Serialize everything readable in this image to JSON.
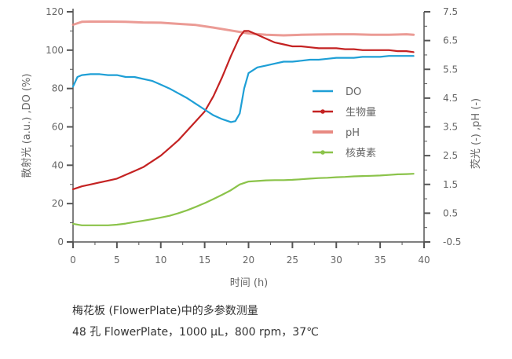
{
  "chart_data": {
    "type": "line",
    "xlabel": "时间 (h)",
    "ylabel_left": "散射光 (a.u.) ,DO (%)",
    "ylabel_right": "荧光 (-) ,pH (-)",
    "xlim": [
      0,
      40
    ],
    "ylim_left": [
      0,
      120
    ],
    "ylim_right": [
      -0.5,
      7.5
    ],
    "x_ticks": [
      "0",
      "5",
      "10",
      "15",
      "20",
      "25",
      "30",
      "35",
      "40"
    ],
    "y_left_ticks": [
      "0",
      "20",
      "40",
      "60",
      "80",
      "100",
      "120"
    ],
    "y_right_ticks": [
      "-0.5",
      "0.5",
      "1.5",
      "2.5",
      "3.5",
      "4.5",
      "5.5",
      "6.5",
      "7.5"
    ],
    "grid": false,
    "legend_position": "right-middle",
    "series": [
      {
        "name": "DO",
        "axis": "left",
        "color": "#1e9fd6",
        "marker": "none",
        "points": [
          [
            0,
            81
          ],
          [
            0.5,
            86
          ],
          [
            1,
            87
          ],
          [
            2,
            87.5
          ],
          [
            3,
            87.5
          ],
          [
            4,
            87
          ],
          [
            5,
            87
          ],
          [
            6,
            86
          ],
          [
            7,
            86
          ],
          [
            8,
            85
          ],
          [
            9,
            84
          ],
          [
            10,
            82
          ],
          [
            11,
            80
          ],
          [
            12,
            77.5
          ],
          [
            13,
            75
          ],
          [
            14,
            72
          ],
          [
            15,
            69
          ],
          [
            16,
            66
          ],
          [
            17,
            64
          ],
          [
            18,
            62.5
          ],
          [
            18.5,
            63
          ],
          [
            19,
            67
          ],
          [
            19.5,
            80
          ],
          [
            20,
            88
          ],
          [
            21,
            91
          ],
          [
            22,
            92
          ],
          [
            23,
            93
          ],
          [
            24,
            94
          ],
          [
            25,
            94
          ],
          [
            26,
            94.5
          ],
          [
            27,
            95
          ],
          [
            28,
            95
          ],
          [
            29,
            95.5
          ],
          [
            30,
            96
          ],
          [
            31,
            96
          ],
          [
            32,
            96
          ],
          [
            33,
            96.5
          ],
          [
            34,
            96.5
          ],
          [
            35,
            96.5
          ],
          [
            36,
            97
          ],
          [
            37,
            97
          ],
          [
            38,
            97
          ],
          [
            38.8,
            97
          ]
        ]
      },
      {
        "name": "生物量",
        "axis": "left",
        "color": "#c42222",
        "marker": "dot",
        "points": [
          [
            0,
            27.5
          ],
          [
            1,
            29
          ],
          [
            2,
            30
          ],
          [
            3,
            31
          ],
          [
            4,
            32
          ],
          [
            5,
            33
          ],
          [
            6,
            35
          ],
          [
            7,
            37
          ],
          [
            8,
            39
          ],
          [
            9,
            42
          ],
          [
            10,
            45
          ],
          [
            11,
            49
          ],
          [
            12,
            53
          ],
          [
            13,
            58
          ],
          [
            14,
            63
          ],
          [
            15,
            68
          ],
          [
            16,
            76
          ],
          [
            17,
            86
          ],
          [
            18,
            97
          ],
          [
            19,
            107
          ],
          [
            19.5,
            110
          ],
          [
            20,
            110
          ],
          [
            21,
            108
          ],
          [
            22,
            106
          ],
          [
            23,
            104
          ],
          [
            24,
            103
          ],
          [
            25,
            102
          ],
          [
            26,
            102
          ],
          [
            27,
            101.5
          ],
          [
            28,
            101
          ],
          [
            29,
            101
          ],
          [
            30,
            101
          ],
          [
            31,
            100.5
          ],
          [
            32,
            100.5
          ],
          [
            33,
            100
          ],
          [
            34,
            100
          ],
          [
            35,
            100
          ],
          [
            36,
            100
          ],
          [
            37,
            99.5
          ],
          [
            38,
            99.5
          ],
          [
            38.8,
            99
          ]
        ]
      },
      {
        "name": "pH",
        "axis": "right",
        "color": "#e88a82",
        "marker": "none",
        "points": [
          [
            0,
            7.05
          ],
          [
            1,
            7.15
          ],
          [
            2,
            7.16
          ],
          [
            4,
            7.16
          ],
          [
            6,
            7.15
          ],
          [
            8,
            7.13
          ],
          [
            10,
            7.12
          ],
          [
            12,
            7.08
          ],
          [
            14,
            7.04
          ],
          [
            16,
            6.95
          ],
          [
            18,
            6.85
          ],
          [
            20,
            6.75
          ],
          [
            22,
            6.7
          ],
          [
            24,
            6.68
          ],
          [
            26,
            6.7
          ],
          [
            28,
            6.71
          ],
          [
            30,
            6.72
          ],
          [
            32,
            6.72
          ],
          [
            34,
            6.7
          ],
          [
            36,
            6.7
          ],
          [
            38,
            6.72
          ],
          [
            38.8,
            6.7
          ]
        ]
      },
      {
        "name": "核黄素",
        "axis": "right",
        "color": "#8bc34a",
        "marker": "dot",
        "points": [
          [
            0,
            0.13
          ],
          [
            1,
            0.08
          ],
          [
            2,
            0.08
          ],
          [
            3,
            0.08
          ],
          [
            4,
            0.08
          ],
          [
            5,
            0.1
          ],
          [
            6,
            0.14
          ],
          [
            7,
            0.19
          ],
          [
            8,
            0.24
          ],
          [
            9,
            0.29
          ],
          [
            10,
            0.35
          ],
          [
            11,
            0.41
          ],
          [
            12,
            0.5
          ],
          [
            13,
            0.6
          ],
          [
            14,
            0.72
          ],
          [
            15,
            0.85
          ],
          [
            16,
            0.99
          ],
          [
            17,
            1.14
          ],
          [
            18,
            1.3
          ],
          [
            19,
            1.5
          ],
          [
            20,
            1.6
          ],
          [
            21,
            1.62
          ],
          [
            22,
            1.64
          ],
          [
            23,
            1.65
          ],
          [
            24,
            1.65
          ],
          [
            25,
            1.66
          ],
          [
            26,
            1.68
          ],
          [
            27,
            1.7
          ],
          [
            28,
            1.72
          ],
          [
            29,
            1.73
          ],
          [
            30,
            1.75
          ],
          [
            31,
            1.76
          ],
          [
            32,
            1.78
          ],
          [
            33,
            1.79
          ],
          [
            34,
            1.8
          ],
          [
            35,
            1.81
          ],
          [
            36,
            1.83
          ],
          [
            37,
            1.85
          ],
          [
            38,
            1.86
          ],
          [
            38.8,
            1.87
          ]
        ]
      }
    ]
  },
  "caption": {
    "line1": "梅花板 (FlowerPlate)中的多参数测量",
    "line2": "48 孔 FlowerPlate，1000 μL，800 rpm，37℃"
  }
}
